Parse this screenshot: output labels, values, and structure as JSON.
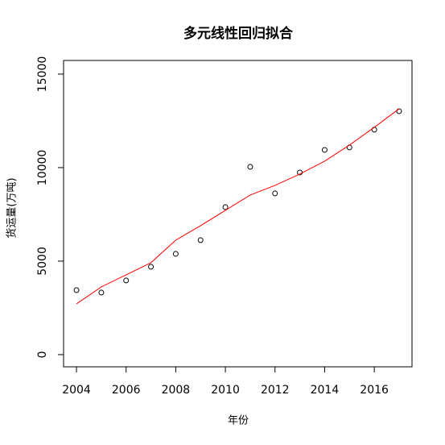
{
  "chart_data": {
    "type": "scatter",
    "title": "多元线性回归拟合",
    "x_label": "年份",
    "y_label": "货运量(万吨)",
    "x": [
      2004,
      2005,
      2006,
      2007,
      2008,
      2009,
      2010,
      2011,
      2012,
      2013,
      2014,
      2015,
      2016,
      2017
    ],
    "series": [
      {
        "type": "scatter",
        "color": "#000000",
        "values": [
          3448,
          3319,
          3966,
          4698,
          5388,
          6121,
          7888,
          10043,
          8621,
          9741,
          10948,
          11078,
          12026,
          13017
        ]
      },
      {
        "type": "line",
        "color": "#ff0000",
        "values": [
          2716,
          3621,
          4267,
          4914,
          6121,
          6897,
          7716,
          8534,
          9052,
          9655,
          10345,
          11207,
          12155,
          13147
        ]
      }
    ],
    "xlim": [
      2003.48,
      2017.52
    ],
    "xticks": [
      2004,
      2006,
      2008,
      2010,
      2012,
      2014,
      2016
    ],
    "ylim": [
      -650,
      15730
    ],
    "yticks": [
      0,
      5000,
      10000,
      15000
    ]
  }
}
